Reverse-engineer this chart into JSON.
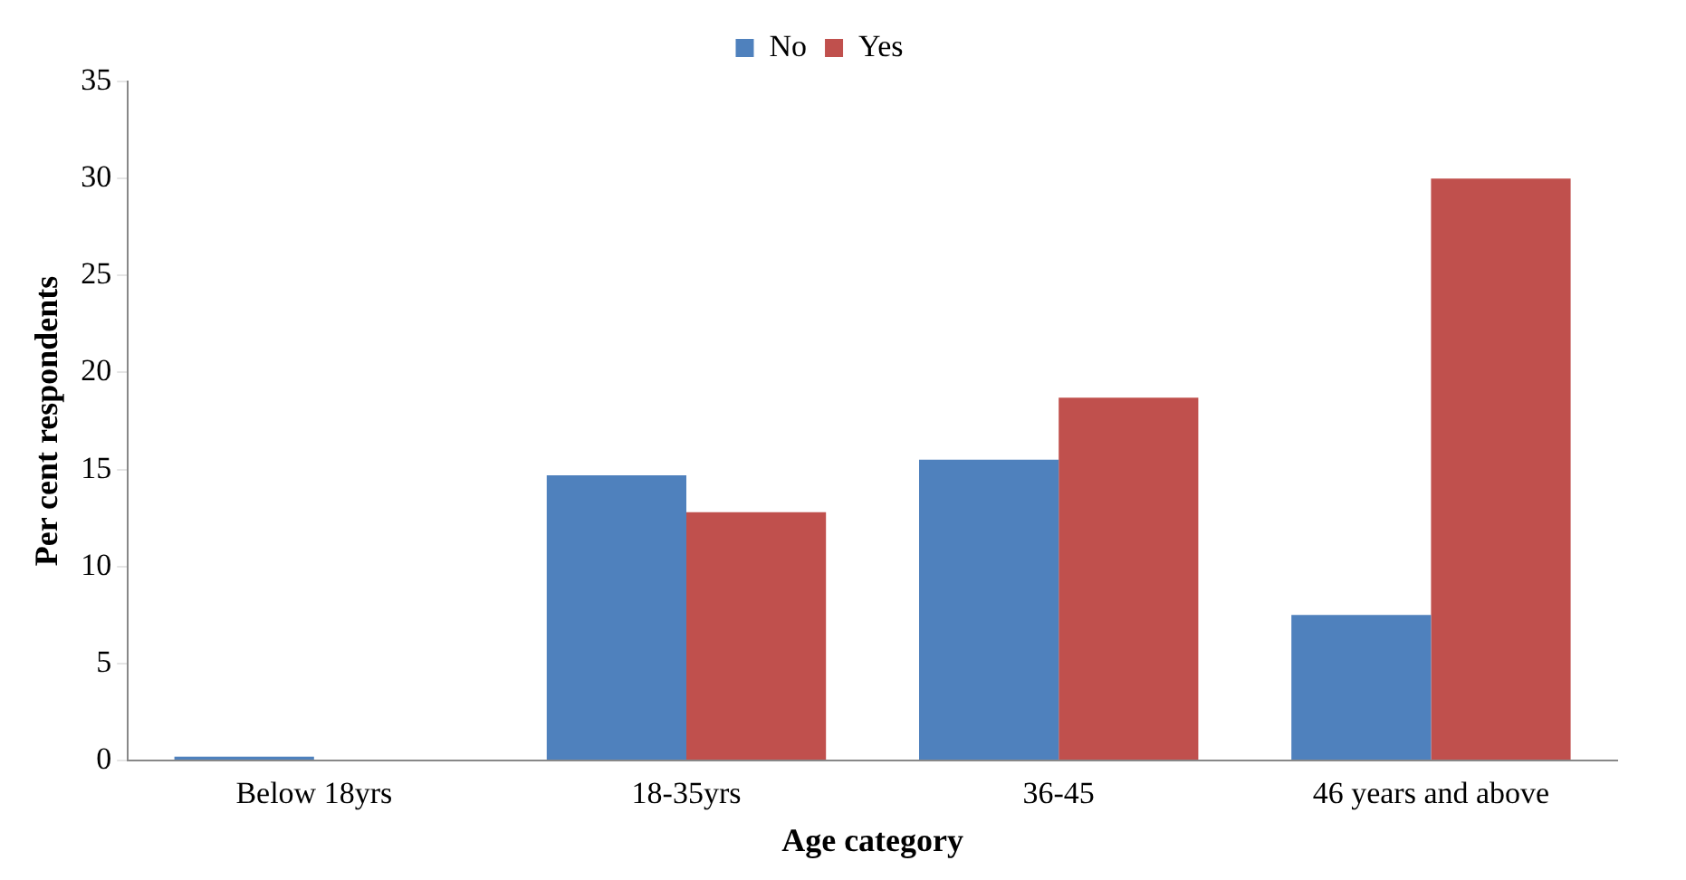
{
  "chart_data": {
    "type": "bar",
    "xlabel": "Age category",
    "ylabel": "Per cent respondents",
    "categories": [
      "Below 18yrs",
      "18-35yrs",
      "36-45",
      "46 years and above"
    ],
    "series": [
      {
        "name": "No",
        "color": "#4f81bd",
        "values": [
          0.2,
          14.7,
          15.5,
          7.5
        ]
      },
      {
        "name": "Yes",
        "color": "#c0504d",
        "values": [
          0,
          12.8,
          18.7,
          30.0
        ]
      }
    ],
    "ylim": [
      0,
      35
    ],
    "yticks": [
      0,
      5,
      10,
      15,
      20,
      25,
      30,
      35
    ],
    "grid": false,
    "legend": "top"
  }
}
